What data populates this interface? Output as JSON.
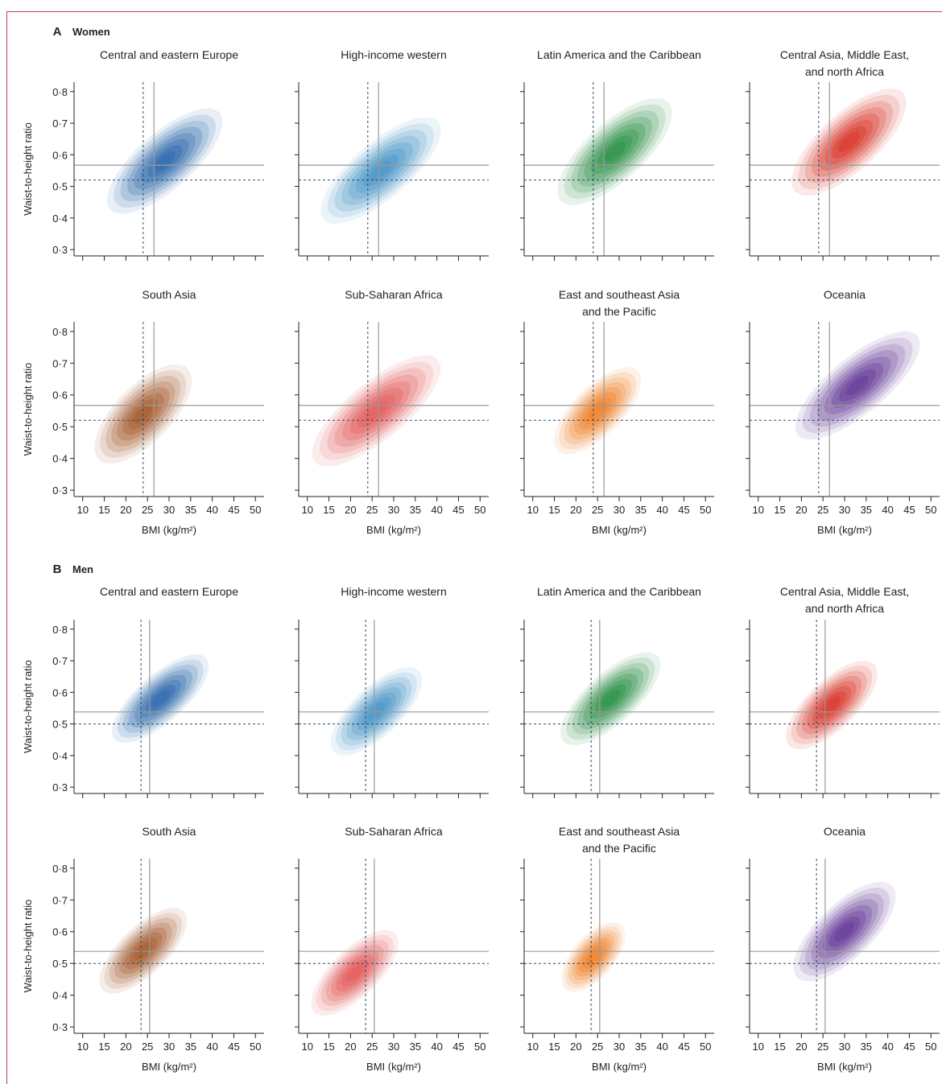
{
  "sections": [
    {
      "letter": "A",
      "title": "Women"
    },
    {
      "letter": "B",
      "title": "Men"
    }
  ],
  "axes": {
    "xlabel": "BMI (kg/m²)",
    "ylabel": "Waist-to-height ratio",
    "xticks": [
      "10",
      "15",
      "20",
      "25",
      "30",
      "35",
      "40",
      "45",
      "50"
    ],
    "yticks": [
      "0·8",
      "0·7",
      "0·6",
      "0·5",
      "0·4",
      "0·3"
    ]
  },
  "chart_data": {
    "type": "density_contour",
    "xlabel": "BMI (kg/m²)",
    "ylabel": "Waist-to-height ratio",
    "xlim": [
      8,
      52
    ],
    "ylim": [
      0.28,
      0.83
    ],
    "grid": false,
    "reference_lines": {
      "women": {
        "bmi_solid": 26.5,
        "bmi_dashed": 24,
        "whtr_solid": 0.567,
        "whtr_dashed": 0.52
      },
      "men": {
        "bmi_solid": 25.5,
        "bmi_dashed": 23.5,
        "whtr_solid": 0.538,
        "whtr_dashed": 0.5
      }
    },
    "panels": [
      {
        "sex": "women",
        "region": "Central and eastern Europe",
        "color": "#1f5fa8",
        "cx": 29,
        "cy": 0.58,
        "bmi_range": [
          17,
          46
        ],
        "whtr_range": [
          0.42,
          0.77
        ]
      },
      {
        "sex": "women",
        "region": "High-income western",
        "color": "#3d8fc4",
        "cx": 27,
        "cy": 0.55,
        "bmi_range": [
          16,
          46
        ],
        "whtr_range": [
          0.4,
          0.75
        ]
      },
      {
        "sex": "women",
        "region": "Latin America and the Caribbean",
        "color": "#1e8a3a",
        "cx": 29,
        "cy": 0.61,
        "bmi_range": [
          18,
          47
        ],
        "whtr_range": [
          0.43,
          0.79
        ]
      },
      {
        "sex": "women",
        "region": "Central Asia, Middle East, and north Africa",
        "color": "#d62a1e",
        "cx": 31,
        "cy": 0.64,
        "bmi_range": [
          18,
          47
        ],
        "whtr_range": [
          0.43,
          0.79
        ]
      },
      {
        "sex": "women",
        "region": "South Asia",
        "color": "#a0501e",
        "cx": 24,
        "cy": 0.54,
        "bmi_range": [
          15,
          40
        ],
        "whtr_range": [
          0.38,
          0.73
        ]
      },
      {
        "sex": "women",
        "region": "Sub-Saharan Africa",
        "color": "#e25050",
        "cx": 26,
        "cy": 0.55,
        "bmi_range": [
          15,
          47
        ],
        "whtr_range": [
          0.4,
          0.76
        ]
      },
      {
        "sex": "women",
        "region": "East and southeast Asia and the Pacific",
        "color": "#f07a1a",
        "cx": 25,
        "cy": 0.55,
        "bmi_range": [
          16,
          38
        ],
        "whtr_range": [
          0.41,
          0.71
        ]
      },
      {
        "sex": "women",
        "region": "Oceania",
        "color": "#5a2d91",
        "cx": 33,
        "cy": 0.63,
        "bmi_range": [
          20,
          51
        ],
        "whtr_range": [
          0.44,
          0.79
        ]
      },
      {
        "sex": "men",
        "region": "Central and eastern Europe",
        "color": "#1f5fa8",
        "cx": 28,
        "cy": 0.58,
        "bmi_range": [
          17,
          41
        ],
        "whtr_range": [
          0.43,
          0.72
        ]
      },
      {
        "sex": "men",
        "region": "High-income western",
        "color": "#3d8fc4",
        "cx": 26,
        "cy": 0.54,
        "bmi_range": [
          17,
          40
        ],
        "whtr_range": [
          0.41,
          0.71
        ]
      },
      {
        "sex": "men",
        "region": "Latin America and the Caribbean",
        "color": "#1e8a3a",
        "cx": 28,
        "cy": 0.58,
        "bmi_range": [
          18,
          43
        ],
        "whtr_range": [
          0.43,
          0.74
        ]
      },
      {
        "sex": "men",
        "region": "Central Asia, Middle East, and north Africa",
        "color": "#d62a1e",
        "cx": 27,
        "cy": 0.56,
        "bmi_range": [
          18,
          41
        ],
        "whtr_range": [
          0.43,
          0.73
        ]
      },
      {
        "sex": "men",
        "region": "South Asia",
        "color": "#a0501e",
        "cx": 24,
        "cy": 0.54,
        "bmi_range": [
          15,
          37
        ],
        "whtr_range": [
          0.39,
          0.68
        ]
      },
      {
        "sex": "men",
        "region": "Sub-Saharan Africa",
        "color": "#e25050",
        "cx": 21,
        "cy": 0.47,
        "bmi_range": [
          15,
          37
        ],
        "whtr_range": [
          0.39,
          0.68
        ]
      },
      {
        "sex": "men",
        "region": "East and southeast Asia and the Pacific",
        "color": "#f07a1a",
        "cx": 24,
        "cy": 0.52,
        "bmi_range": [
          17,
          33
        ],
        "whtr_range": [
          0.4,
          0.65
        ]
      },
      {
        "sex": "men",
        "region": "Oceania",
        "color": "#5a2d91",
        "cx": 30,
        "cy": 0.6,
        "bmi_range": [
          20,
          46
        ],
        "whtr_range": [
          0.43,
          0.77
        ]
      }
    ]
  },
  "titles": {
    "women": [
      [
        "Central and eastern Europe"
      ],
      [
        "High-income western"
      ],
      [
        "Latin America and the Caribbean"
      ],
      [
        "Central Asia, Middle East,",
        "and north Africa"
      ],
      [
        "South Asia"
      ],
      [
        "Sub-Saharan Africa"
      ],
      [
        "East and southeast Asia",
        "and the Pacific"
      ],
      [
        "Oceania"
      ]
    ],
    "men": [
      [
        "Central and eastern Europe"
      ],
      [
        "High-income western"
      ],
      [
        "Latin America and the Caribbean"
      ],
      [
        "Central Asia, Middle East,",
        "and north Africa"
      ],
      [
        "South Asia"
      ],
      [
        "Sub-Saharan Africa"
      ],
      [
        "East and southeast Asia",
        "and the Pacific"
      ],
      [
        "Oceania"
      ]
    ]
  }
}
